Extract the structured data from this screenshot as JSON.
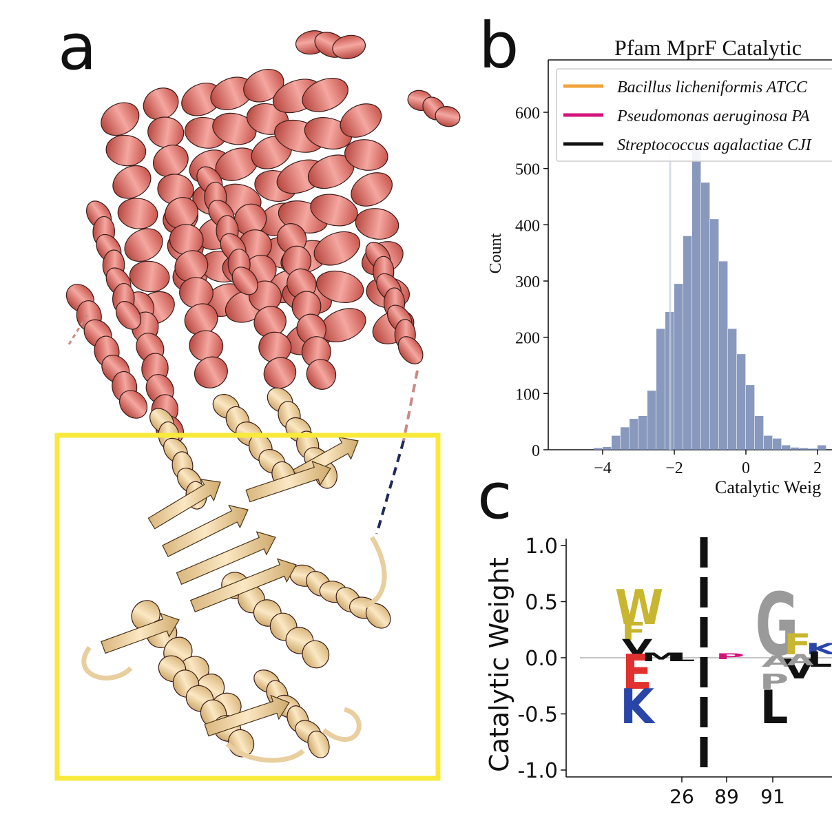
{
  "panels": {
    "a": {
      "letter": "a"
    },
    "b": {
      "letter": "b"
    },
    "c": {
      "letter": "c"
    }
  },
  "colors": {
    "helix_domain": "#e07a72",
    "catalytic_domain": "#f2d6a6",
    "highlight_box": "#f9e93a",
    "histogram_bar": "#7487b3",
    "legend_orange": "#f0a33a",
    "legend_magenta": "#d4127a",
    "legend_black": "#111111"
  },
  "chart_data": [
    {
      "type": "bar",
      "title": "Pfam MprF Catalytic",
      "xlabel": "Catalytic Weig",
      "ylabel": "Count",
      "xlim": [
        -5.5,
        2.4
      ],
      "ylim": [
        0,
        650
      ],
      "xticks": [
        -4,
        -2,
        0,
        2
      ],
      "xtick_labels": [
        "−4",
        "−2",
        "0",
        "2"
      ],
      "yticks": [
        0,
        100,
        200,
        300,
        400,
        500,
        600
      ],
      "ytick_labels": [
        "0",
        "100",
        "200",
        "300",
        "400",
        "500",
        "600"
      ],
      "bin_start": -5.0,
      "bin_width": 0.25,
      "values": [
        0,
        0,
        0,
        3,
        5,
        25,
        40,
        55,
        60,
        105,
        215,
        245,
        295,
        380,
        535,
        475,
        410,
        335,
        215,
        170,
        115,
        60,
        25,
        20,
        8,
        4,
        3,
        2,
        8,
        2,
        4,
        2,
        10
      ],
      "legend": {
        "placement": "top",
        "entries": [
          {
            "name": "Bacillus licheniformis ATCC",
            "color": "#f0a33a"
          },
          {
            "name": "Pseudomonas aeruginosa PA",
            "color": "#d4127a"
          },
          {
            "name": "Streptococcus agalactiae CJI",
            "color": "#111111"
          }
        ]
      },
      "vertical_markers": [
        -2.0
      ]
    },
    {
      "type": "logo",
      "ylabel": "Catalytic Weight",
      "ylim": [
        -1.0,
        1.0
      ],
      "yticks": [
        1.0,
        0.5,
        0.0,
        -0.5,
        -1.0
      ],
      "ytick_labels": [
        "1.0",
        "0.5",
        "0.0",
        "-0.5",
        "-1.0"
      ],
      "xtick_labels": [
        "26",
        "89",
        "91"
      ],
      "letters": [
        {
          "char": "W",
          "color": "#c8b630"
        },
        {
          "char": "F",
          "color": "#c8b630"
        },
        {
          "char": "V",
          "color": "#111111"
        },
        {
          "char": "E",
          "color": "#e03030"
        },
        {
          "char": "K",
          "color": "#2a45a8"
        },
        {
          "char": "G",
          "color": "#9a9a9a"
        },
        {
          "char": "F",
          "color": "#c8b630"
        },
        {
          "char": "K",
          "color": "#2a45a8"
        },
        {
          "char": "L",
          "color": "#111111"
        },
        {
          "char": "A",
          "color": "#9a9a9a"
        },
        {
          "char": "V",
          "color": "#111111"
        },
        {
          "char": "A",
          "color": "#9a9a9a"
        },
        {
          "char": "P",
          "color": "#9a9a9a"
        },
        {
          "char": "L",
          "color": "#111111"
        },
        {
          "char": "M",
          "color": "#111111"
        },
        {
          "char": "L",
          "color": "#111111"
        },
        {
          "char": "P",
          "color": "#d4127a"
        }
      ]
    }
  ]
}
